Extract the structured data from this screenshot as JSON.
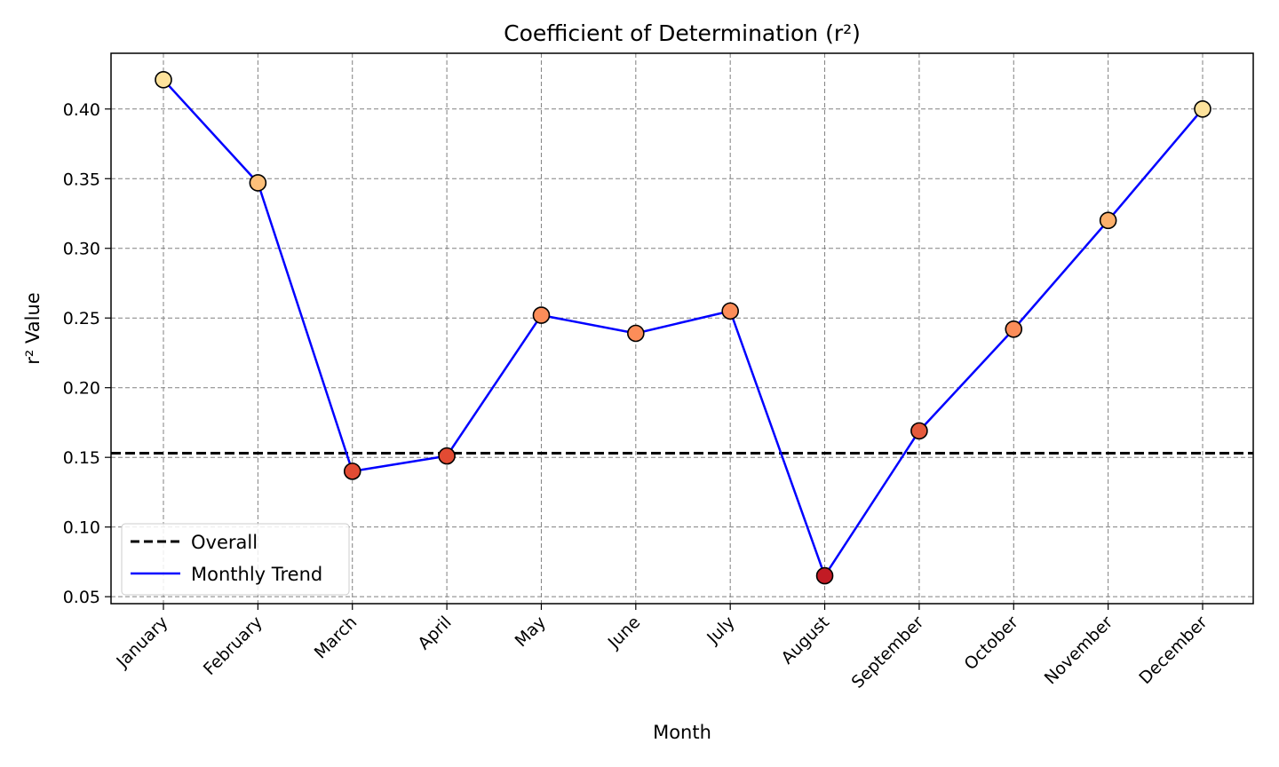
{
  "chart_data": {
    "type": "line",
    "title": "Coefficient of Determination (r²)",
    "xlabel": "Month",
    "ylabel": "r² Value",
    "categories": [
      "January",
      "February",
      "March",
      "April",
      "May",
      "June",
      "July",
      "August",
      "September",
      "October",
      "November",
      "December"
    ],
    "series": [
      {
        "name": "Monthly Trend",
        "values": [
          0.421,
          0.347,
          0.14,
          0.151,
          0.252,
          0.239,
          0.255,
          0.065,
          0.169,
          0.242,
          0.32,
          0.4
        ],
        "color": "#0000ff",
        "marker_colors": [
          "#fde29b",
          "#fdc07a",
          "#e24b33",
          "#e24b33",
          "#fc8d59",
          "#fc8d59",
          "#fc8d59",
          "#c21b24",
          "#e55a3c",
          "#fc8d59",
          "#fdb06b",
          "#fde29b"
        ]
      }
    ],
    "overall": {
      "name": "Overall",
      "value": 0.153,
      "color": "#000000",
      "style": "dashed"
    },
    "ylim": [
      0.045,
      0.44
    ],
    "yticks": [
      "0.05",
      "0.10",
      "0.15",
      "0.20",
      "0.25",
      "0.30",
      "0.35",
      "0.40"
    ],
    "grid": true,
    "legend_position": "lower-left"
  }
}
